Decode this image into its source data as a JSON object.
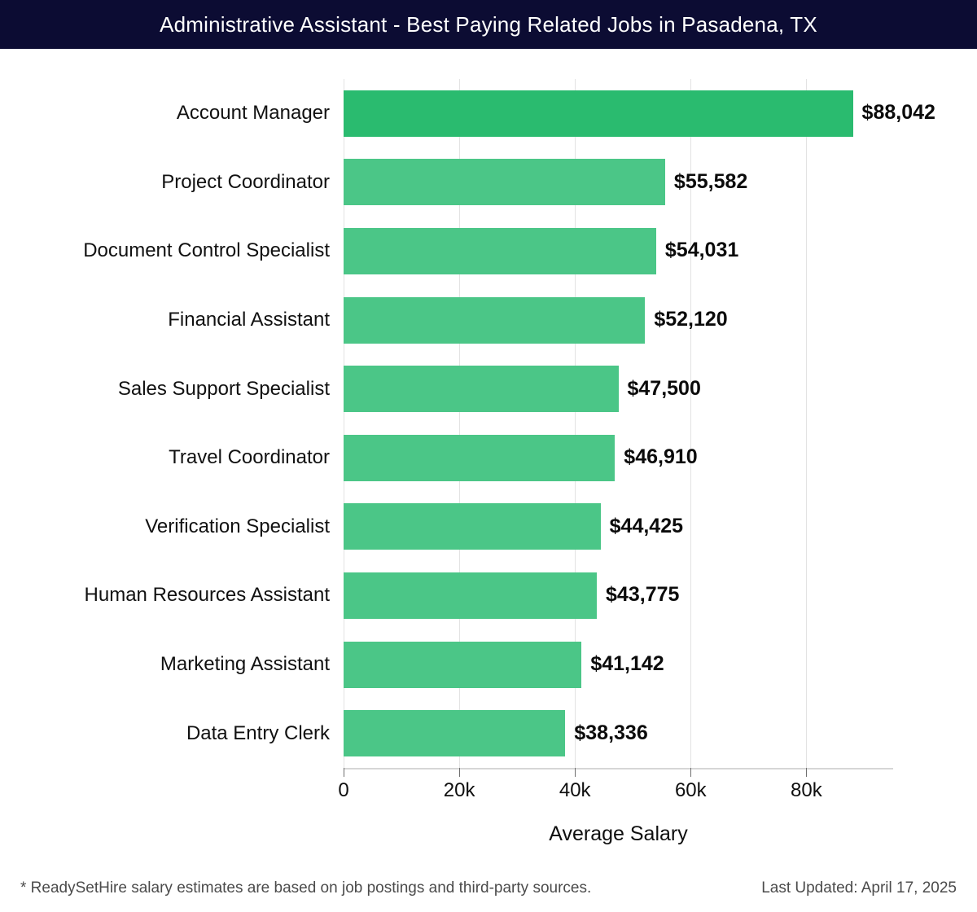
{
  "header": {
    "title": "Administrative Assistant - Best Paying Related Jobs in Pasadena, TX",
    "bg_color": "#0c0c33",
    "text_color": "#ffffff"
  },
  "chart_data": {
    "type": "bar",
    "orientation": "horizontal",
    "title": "Administrative Assistant - Best Paying Related Jobs in Pasadena, TX",
    "categories": [
      "Account Manager",
      "Project Coordinator",
      "Document Control Specialist",
      "Financial Assistant",
      "Sales Support Specialist",
      "Travel Coordinator",
      "Verification Specialist",
      "Human Resources Assistant",
      "Marketing Assistant",
      "Data Entry Clerk"
    ],
    "values": [
      88042,
      55582,
      54031,
      52120,
      47500,
      46910,
      44425,
      43775,
      41142,
      38336
    ],
    "value_labels": [
      "$88,042",
      "$55,582",
      "$54,031",
      "$52,120",
      "$47,500",
      "$46,910",
      "$44,425",
      "$43,775",
      "$41,142",
      "$38,336"
    ],
    "highlight_index": 0,
    "highlight_color": "#2abb6f",
    "bar_color": "#4bc687",
    "grid": "vertical",
    "gridline_color": "#e3e3e3",
    "xlabel": "Average Salary",
    "xlim": [
      0,
      95000
    ],
    "xticks": {
      "values": [
        0,
        20000,
        40000,
        60000,
        80000
      ],
      "labels": [
        "0",
        "20k",
        "40k",
        "60k",
        "80k"
      ]
    },
    "legend": "none"
  },
  "footer": {
    "note": "* ReadySetHire salary estimates are based on job postings and third-party sources.",
    "last_updated": "Last Updated: April 17, 2025"
  }
}
